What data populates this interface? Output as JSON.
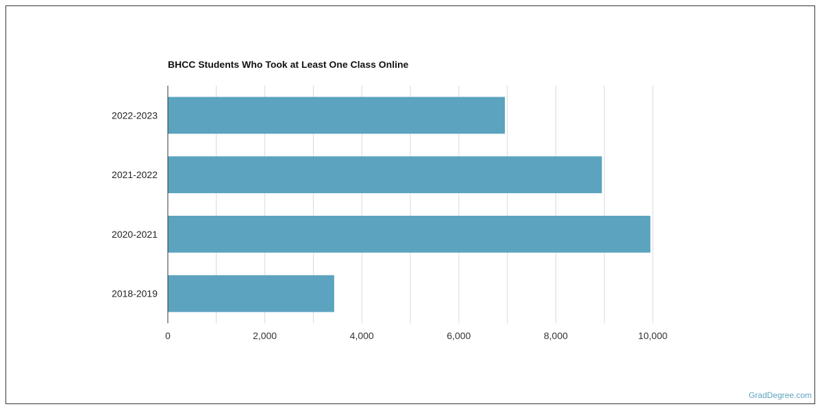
{
  "chart_data": {
    "type": "bar",
    "orientation": "horizontal",
    "title": "BHCC Students Who Took at Least One Class Online",
    "xlabel": "",
    "ylabel": "",
    "categories": [
      "2022-2023",
      "2021-2022",
      "2020-2021",
      "2018-2019"
    ],
    "values": [
      6950,
      8950,
      9950,
      3430
    ],
    "xlim": [
      0,
      10000
    ],
    "xticks": [
      0,
      2000,
      4000,
      6000,
      8000,
      10000
    ],
    "xtick_labels": [
      "0",
      "2,000",
      "4,000",
      "6,000",
      "8,000",
      "10,000"
    ],
    "grid": "vertical",
    "legend": "none",
    "bar_color": "#5ba3bf"
  },
  "credit": "GradDegree.com"
}
